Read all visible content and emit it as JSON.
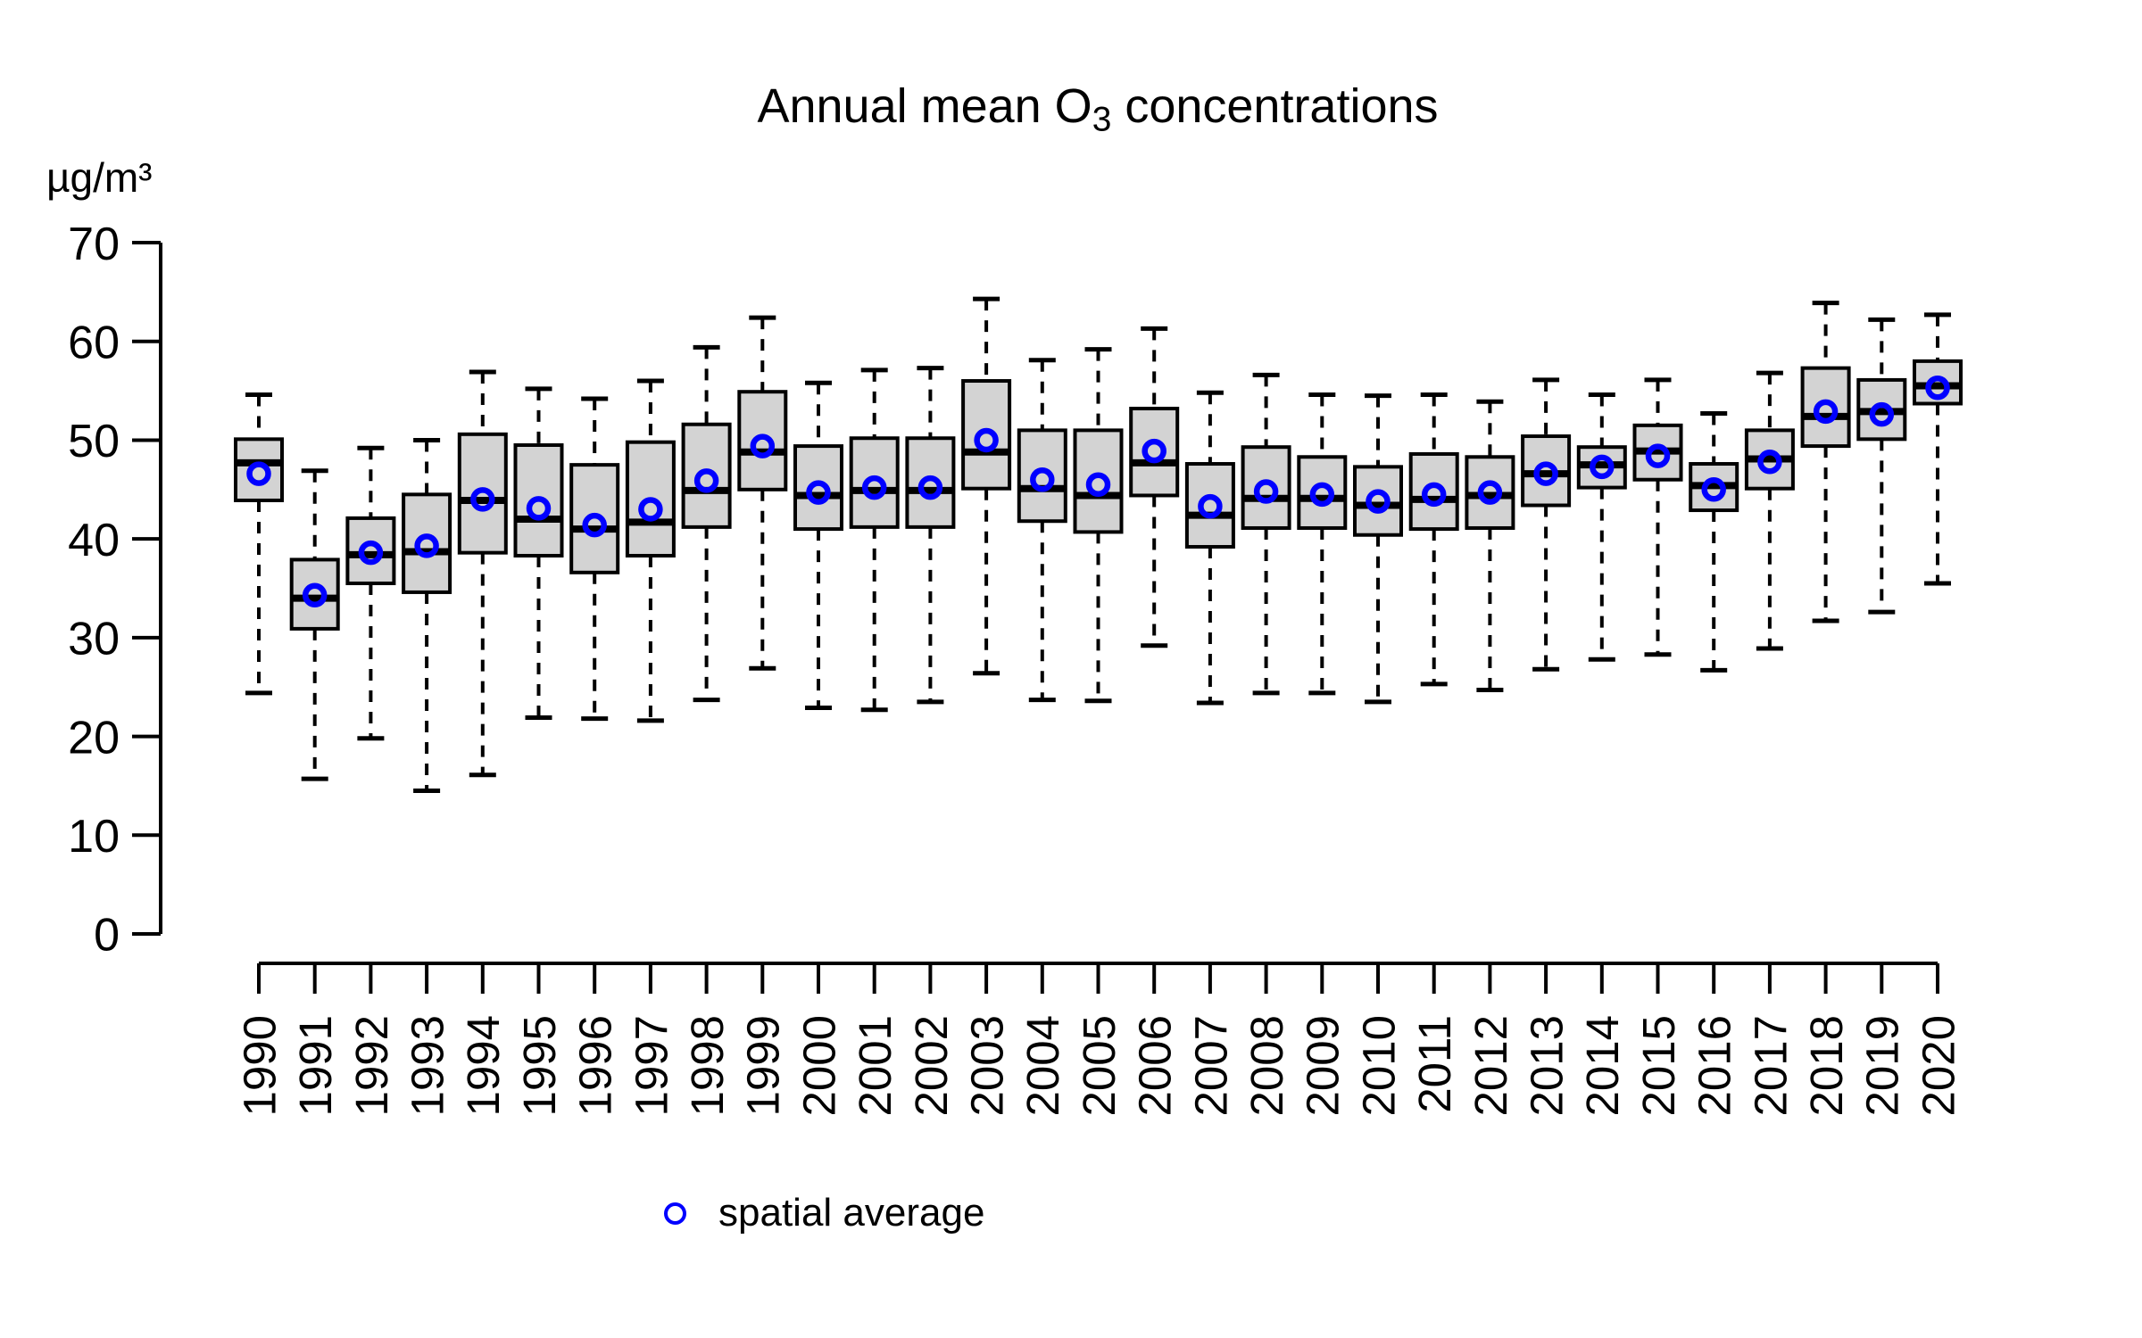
{
  "title": {
    "prefix": "Annual mean O",
    "sub": "3",
    "suffix": " concentrations"
  },
  "y_axis": {
    "unit_label": "µg/m³"
  },
  "legend": {
    "symbol": "open-circle-icon",
    "label": "spatial average"
  },
  "colors": {
    "box_fill": "#d3d3d3",
    "box_border": "#000000",
    "median": "#000000",
    "whisker": "#000000",
    "mean_marker": "#0000ff",
    "axis": "#000000",
    "background": "#ffffff"
  },
  "chart_data": {
    "type": "boxplot",
    "title": "Annual mean O3 concentrations",
    "ylabel": "µg/m³",
    "xlabel": "",
    "ylim": [
      0,
      70
    ],
    "y_ticks": [
      0,
      10,
      20,
      30,
      40,
      50,
      60,
      70
    ],
    "grid": "off",
    "legend_position": "bottom",
    "mean_series_name": "spatial average",
    "boxes": [
      {
        "year": 1990,
        "whisker_low": 24.4,
        "q1": 43.9,
        "median": 47.7,
        "mean": 46.6,
        "q3": 50.1,
        "whisker_high": 54.6
      },
      {
        "year": 1991,
        "whisker_low": 15.7,
        "q1": 30.9,
        "median": 34.0,
        "mean": 34.3,
        "q3": 37.9,
        "whisker_high": 46.9
      },
      {
        "year": 1992,
        "whisker_low": 19.8,
        "q1": 35.5,
        "median": 38.4,
        "mean": 38.6,
        "q3": 42.1,
        "whisker_high": 49.2
      },
      {
        "year": 1993,
        "whisker_low": 14.5,
        "q1": 34.6,
        "median": 38.7,
        "mean": 39.3,
        "q3": 44.5,
        "whisker_high": 50.0
      },
      {
        "year": 1994,
        "whisker_low": 16.1,
        "q1": 38.6,
        "median": 43.9,
        "mean": 44.0,
        "q3": 50.6,
        "whisker_high": 56.9
      },
      {
        "year": 1995,
        "whisker_low": 21.9,
        "q1": 38.3,
        "median": 42.0,
        "mean": 43.1,
        "q3": 49.5,
        "whisker_high": 55.2
      },
      {
        "year": 1996,
        "whisker_low": 21.8,
        "q1": 36.6,
        "median": 41.0,
        "mean": 41.4,
        "q3": 47.5,
        "whisker_high": 54.2
      },
      {
        "year": 1997,
        "whisker_low": 21.6,
        "q1": 38.3,
        "median": 41.7,
        "mean": 43.0,
        "q3": 49.8,
        "whisker_high": 56.0
      },
      {
        "year": 1998,
        "whisker_low": 23.7,
        "q1": 41.2,
        "median": 44.9,
        "mean": 45.9,
        "q3": 51.6,
        "whisker_high": 59.4
      },
      {
        "year": 1999,
        "whisker_low": 26.9,
        "q1": 45.0,
        "median": 48.8,
        "mean": 49.4,
        "q3": 54.9,
        "whisker_high": 62.4
      },
      {
        "year": 2000,
        "whisker_low": 22.9,
        "q1": 41.0,
        "median": 44.4,
        "mean": 44.7,
        "q3": 49.4,
        "whisker_high": 55.8
      },
      {
        "year": 2001,
        "whisker_low": 22.7,
        "q1": 41.2,
        "median": 44.9,
        "mean": 45.2,
        "q3": 50.2,
        "whisker_high": 57.1
      },
      {
        "year": 2002,
        "whisker_low": 23.5,
        "q1": 41.2,
        "median": 44.9,
        "mean": 45.2,
        "q3": 50.2,
        "whisker_high": 57.3
      },
      {
        "year": 2003,
        "whisker_low": 26.4,
        "q1": 45.1,
        "median": 48.8,
        "mean": 50.0,
        "q3": 56.0,
        "whisker_high": 64.3
      },
      {
        "year": 2004,
        "whisker_low": 23.7,
        "q1": 41.8,
        "median": 45.1,
        "mean": 46.0,
        "q3": 51.0,
        "whisker_high": 58.1
      },
      {
        "year": 2005,
        "whisker_low": 23.6,
        "q1": 40.7,
        "median": 44.4,
        "mean": 45.5,
        "q3": 51.0,
        "whisker_high": 59.2
      },
      {
        "year": 2006,
        "whisker_low": 29.2,
        "q1": 44.4,
        "median": 47.7,
        "mean": 48.9,
        "q3": 53.2,
        "whisker_high": 61.3
      },
      {
        "year": 2007,
        "whisker_low": 23.4,
        "q1": 39.2,
        "median": 42.4,
        "mean": 43.3,
        "q3": 47.6,
        "whisker_high": 54.8
      },
      {
        "year": 2008,
        "whisker_low": 24.4,
        "q1": 41.1,
        "median": 44.1,
        "mean": 44.8,
        "q3": 49.3,
        "whisker_high": 56.6
      },
      {
        "year": 2009,
        "whisker_low": 24.4,
        "q1": 41.1,
        "median": 44.1,
        "mean": 44.5,
        "q3": 48.3,
        "whisker_high": 54.6
      },
      {
        "year": 2010,
        "whisker_low": 23.5,
        "q1": 40.4,
        "median": 43.4,
        "mean": 43.8,
        "q3": 47.3,
        "whisker_high": 54.5
      },
      {
        "year": 2011,
        "whisker_low": 25.3,
        "q1": 41.0,
        "median": 44.0,
        "mean": 44.5,
        "q3": 48.6,
        "whisker_high": 54.6
      },
      {
        "year": 2012,
        "whisker_low": 24.7,
        "q1": 41.1,
        "median": 44.4,
        "mean": 44.7,
        "q3": 48.3,
        "whisker_high": 53.9
      },
      {
        "year": 2013,
        "whisker_low": 26.8,
        "q1": 43.4,
        "median": 46.6,
        "mean": 46.6,
        "q3": 50.4,
        "whisker_high": 56.1
      },
      {
        "year": 2014,
        "whisker_low": 27.8,
        "q1": 45.2,
        "median": 47.5,
        "mean": 47.3,
        "q3": 49.3,
        "whisker_high": 54.6
      },
      {
        "year": 2015,
        "whisker_low": 28.3,
        "q1": 46.0,
        "median": 48.9,
        "mean": 48.4,
        "q3": 51.5,
        "whisker_high": 56.1
      },
      {
        "year": 2016,
        "whisker_low": 26.7,
        "q1": 42.9,
        "median": 45.4,
        "mean": 45.0,
        "q3": 47.6,
        "whisker_high": 52.7
      },
      {
        "year": 2017,
        "whisker_low": 28.9,
        "q1": 45.1,
        "median": 48.1,
        "mean": 47.8,
        "q3": 51.0,
        "whisker_high": 56.8
      },
      {
        "year": 2018,
        "whisker_low": 31.7,
        "q1": 49.4,
        "median": 52.4,
        "mean": 52.9,
        "q3": 57.3,
        "whisker_high": 63.9
      },
      {
        "year": 2019,
        "whisker_low": 32.6,
        "q1": 50.1,
        "median": 52.9,
        "mean": 52.6,
        "q3": 56.1,
        "whisker_high": 62.2
      },
      {
        "year": 2020,
        "whisker_low": 35.5,
        "q1": 53.7,
        "median": 55.5,
        "mean": 55.3,
        "q3": 58.0,
        "whisker_high": 62.7
      }
    ]
  }
}
